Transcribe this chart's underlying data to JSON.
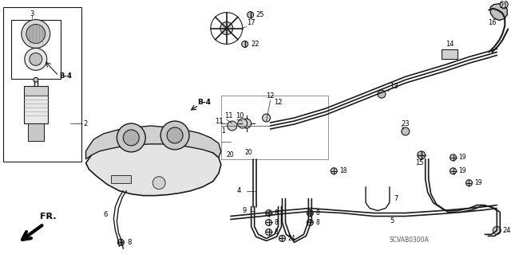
{
  "bg_color": "#ffffff",
  "line_color": "#1a1a1a",
  "diagram_code": "SCVAB0300A",
  "figsize": [
    6.4,
    3.19
  ],
  "dpi": 100
}
